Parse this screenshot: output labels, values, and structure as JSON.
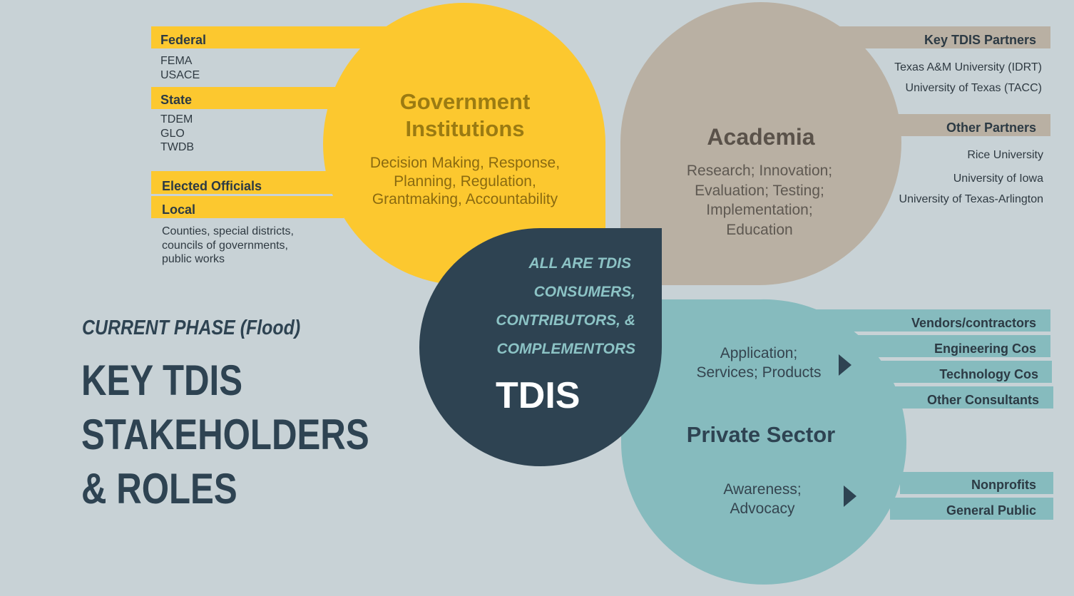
{
  "colors": {
    "background": "#c8d2d6",
    "government": "#fcc82f",
    "academia": "#b9b0a3",
    "private_sector": "#86bbbe",
    "tdis": "#2e4352"
  },
  "government": {
    "title_line1": "Government",
    "title_line2": "Institutions",
    "desc_line1": "Decision Making, Response,",
    "desc_line2": "Planning, Regulation,",
    "desc_line3": "Grantmaking, Accountability",
    "groups": {
      "federal": {
        "label": "Federal",
        "items": [
          "FEMA",
          "USACE"
        ]
      },
      "state": {
        "label": "State",
        "items": [
          "TDEM",
          "GLO",
          "TWDB"
        ]
      },
      "elected": {
        "label": "Elected Officials"
      },
      "local": {
        "label": "Local",
        "items": [
          "Counties, special districts,",
          "councils of governments,",
          "public works"
        ]
      }
    }
  },
  "academia": {
    "title": "Academia",
    "desc_line1": "Research; Innovation;",
    "desc_line2": "Evaluation; Testing;",
    "desc_line3": "Implementation;",
    "desc_line4": "Education",
    "key_partners": {
      "label": "Key TDIS Partners",
      "items": [
        "Texas A&M University (IDRT)",
        "University of Texas (TACC)"
      ]
    },
    "other_partners": {
      "label": "Other Partners",
      "items": [
        "Rice University",
        "University of Iowa",
        "University of Texas-Arlington"
      ]
    }
  },
  "tdis": {
    "consumers_line1": "ALL ARE TDIS",
    "consumers_line2": "CONSUMERS,",
    "consumers_line3": "CONTRIBUTORS, &",
    "consumers_line4": "COMPLEMENTORS",
    "title": "TDIS"
  },
  "private_sector": {
    "title": "Private Sector",
    "role1_line1": "Application;",
    "role1_line2": "Services; Products",
    "role2_line1": "Awareness;",
    "role2_line2": "Advocacy",
    "group1": [
      "Vendors/contractors",
      "Engineering Cos",
      "Technology Cos",
      "Other Consultants"
    ],
    "group2": [
      "Nonprofits",
      "General Public"
    ]
  },
  "heading": {
    "phase": "CURRENT PHASE (Flood)",
    "line1": "KEY TDIS",
    "line2": "STAKEHOLDERS",
    "line3": "& ROLES"
  }
}
